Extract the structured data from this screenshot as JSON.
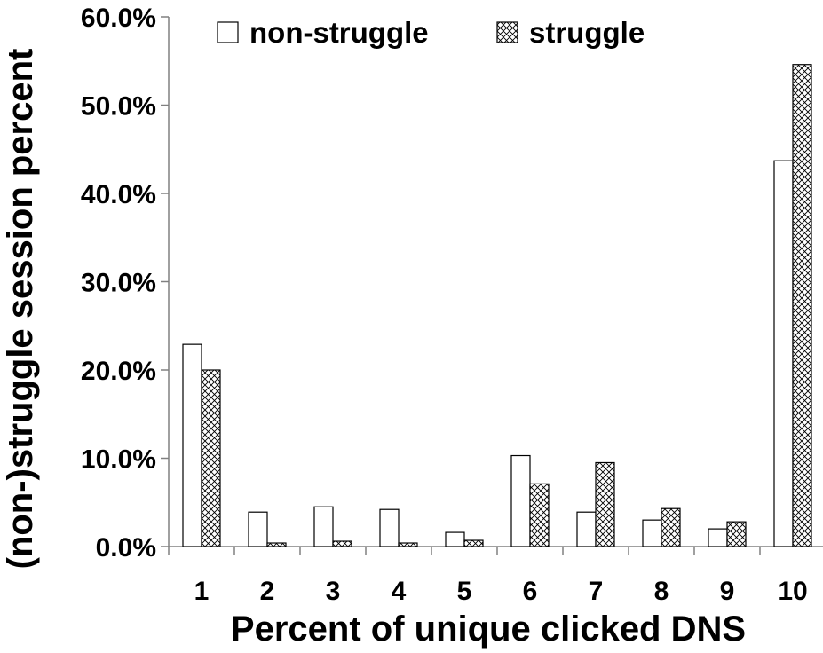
{
  "chart_data": {
    "type": "bar",
    "xlabel": "Percent of unique clicked DNS",
    "ylabel": "(non-)struggle session percent",
    "categories": [
      "1",
      "2",
      "3",
      "4",
      "5",
      "6",
      "7",
      "8",
      "9",
      "10"
    ],
    "series": [
      {
        "name": "non-struggle",
        "fill": "plain",
        "values": [
          22.9,
          3.9,
          4.5,
          4.2,
          1.6,
          10.3,
          3.9,
          3.0,
          2.0,
          43.7
        ]
      },
      {
        "name": "struggle",
        "fill": "crosshatch",
        "values": [
          20.0,
          0.4,
          0.6,
          0.4,
          0.7,
          7.1,
          9.5,
          4.3,
          2.8,
          54.6
        ]
      }
    ],
    "ylim": [
      0,
      60
    ],
    "y_ticks": [
      0,
      10,
      20,
      30,
      40,
      50,
      60
    ],
    "y_tick_labels": [
      "0.0%",
      "10.0%",
      "20.0%",
      "30.0%",
      "40.0%",
      "50.0%",
      "60.0%"
    ],
    "grid": false,
    "legend_position": "top"
  },
  "colors": {
    "bar_fill": "#ffffff",
    "bar_stroke": "#000000",
    "hatch_stroke": "#000000",
    "axis": "#808080",
    "text": "#000000"
  }
}
